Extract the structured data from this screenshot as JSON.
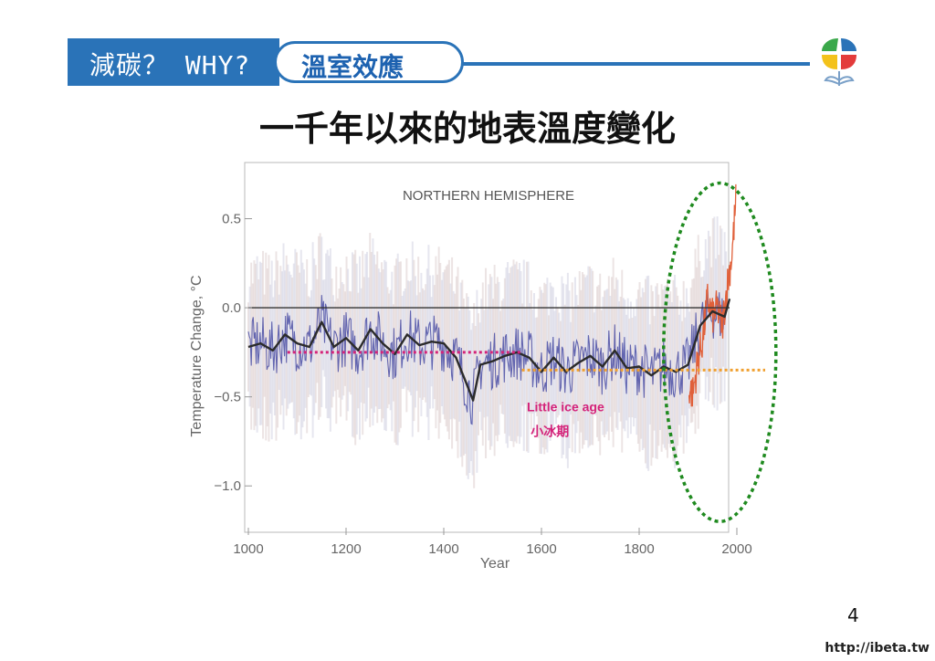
{
  "header": {
    "left_text": "減碳？ WHY?",
    "pill_text": "溫室效應"
  },
  "slide": {
    "title": "一千年以來的地表溫度變化",
    "page_number": "4",
    "footer_url": "http://ibeta.tw"
  },
  "colors": {
    "brand_blue": "#2a73b8",
    "proxy_series": "#4b4fa6",
    "instrumental_series": "#e0603a",
    "smoothed_series": "#2b2b2b",
    "little_ice_age_marker": "#d4237a",
    "recent_marker": "#f0a030",
    "highlight_ellipse": "#1f8a1f",
    "logo_green": "#3aa84a",
    "logo_blue": "#2a73b8",
    "logo_red": "#e33b3b",
    "logo_yellow": "#f3c21b"
  },
  "chart_data": {
    "type": "line",
    "title": "NORTHERN HEMISPHERE",
    "xlabel": "Year",
    "ylabel": "Temperature Change, °C",
    "xlim": [
      1000,
      2000
    ],
    "ylim": [
      -1.25,
      0.8
    ],
    "x_ticks": [
      1000,
      1200,
      1400,
      1600,
      1800,
      2000
    ],
    "y_ticks": [
      0.5,
      0.0,
      -0.5,
      -1.0
    ],
    "x_tick_labels": [
      "1000",
      "1200",
      "1400",
      "1600",
      "1800",
      "2000"
    ],
    "y_tick_labels": [
      "0.5",
      "0.0",
      "−0.5",
      "−1.0"
    ],
    "grid": false,
    "reference_line": 0.0,
    "series": [
      {
        "key": "smoothed",
        "x": [
          1000,
          1025,
          1050,
          1075,
          1100,
          1125,
          1150,
          1175,
          1200,
          1225,
          1250,
          1275,
          1300,
          1325,
          1350,
          1375,
          1400,
          1425,
          1450,
          1460,
          1475,
          1500,
          1525,
          1550,
          1575,
          1600,
          1625,
          1650,
          1675,
          1700,
          1725,
          1750,
          1775,
          1800,
          1825,
          1850,
          1875,
          1900,
          1925,
          1950,
          1975,
          1985
        ],
        "y": [
          -0.22,
          -0.2,
          -0.24,
          -0.15,
          -0.2,
          -0.22,
          -0.08,
          -0.22,
          -0.17,
          -0.24,
          -0.12,
          -0.2,
          -0.26,
          -0.15,
          -0.21,
          -0.19,
          -0.2,
          -0.28,
          -0.45,
          -0.52,
          -0.32,
          -0.3,
          -0.27,
          -0.25,
          -0.28,
          -0.36,
          -0.28,
          -0.36,
          -0.31,
          -0.27,
          -0.33,
          -0.24,
          -0.34,
          -0.33,
          -0.38,
          -0.33,
          -0.36,
          -0.32,
          -0.1,
          -0.02,
          -0.05,
          0.05
        ]
      },
      {
        "key": "instrumental",
        "x": [
          1902,
          1910,
          1920,
          1930,
          1940,
          1950,
          1960,
          1970,
          1980,
          1990,
          1998
        ],
        "y": [
          -0.45,
          -0.48,
          -0.3,
          -0.18,
          0.05,
          -0.05,
          0.0,
          -0.1,
          0.12,
          0.3,
          0.6
        ]
      }
    ],
    "annotations": [
      {
        "text": "Little ice age",
        "x": 1570,
        "y": -0.58
      },
      {
        "text": "小冰期",
        "x": 1578,
        "y": -0.72
      }
    ],
    "highlight_lines": [
      {
        "key": "little_ice_age",
        "x_start": 1080,
        "x_end": 1560,
        "y": -0.25
      },
      {
        "key": "recent",
        "x_start": 1560,
        "x_end": 2060,
        "y": -0.35
      }
    ],
    "highlight_ellipse": {
      "x_center": 1965,
      "y_center": -0.25,
      "x_radius": 115,
      "y_radius": 0.95
    }
  }
}
